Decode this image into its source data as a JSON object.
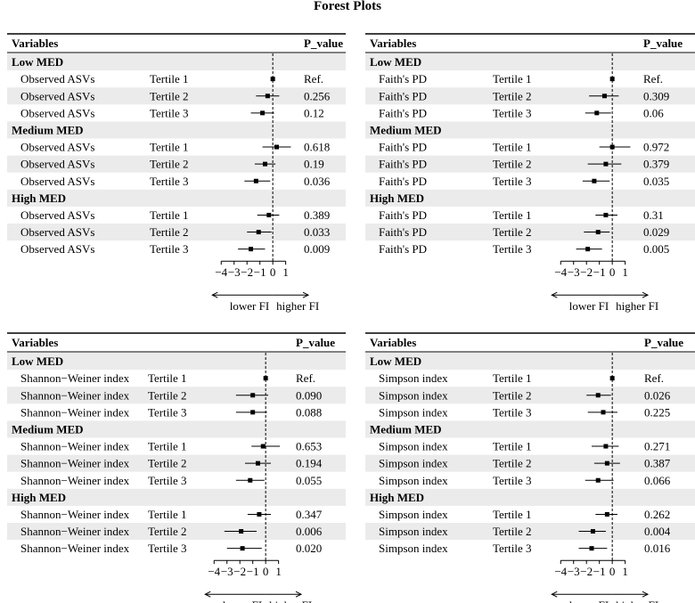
{
  "title": "Forest Plots",
  "axis": {
    "ticks": [
      -4,
      -3,
      -2,
      -1,
      0,
      1
    ],
    "xlim": [
      -5.4,
      2.2
    ],
    "ref_line": 0,
    "lower_label": "lower FI",
    "higher_label": "higher FI"
  },
  "colors": {
    "stripe": "#ebebeb",
    "ink": "#000000"
  },
  "chart_data": [
    {
      "type": "forest",
      "header": {
        "variables": "Variables",
        "pvalue": "P_value"
      },
      "groups": [
        {
          "name": "Low MED",
          "rows": [
            {
              "variable": "Observed ASVs",
              "tertile": "Tertile 1",
              "est": 0.0,
              "lo": 0.0,
              "hi": 0.0,
              "p": "Ref."
            },
            {
              "variable": "Observed ASVs",
              "tertile": "Tertile 2",
              "est": -0.4,
              "lo": -1.3,
              "hi": 0.5,
              "p": "0.256"
            },
            {
              "variable": "Observed ASVs",
              "tertile": "Tertile 3",
              "est": -0.8,
              "lo": -1.7,
              "hi": 0.1,
              "p": "0.12"
            }
          ]
        },
        {
          "name": "Medium MED",
          "rows": [
            {
              "variable": "Observed ASVs",
              "tertile": "Tertile 1",
              "est": 0.3,
              "lo": -0.8,
              "hi": 1.4,
              "p": "0.618"
            },
            {
              "variable": "Observed ASVs",
              "tertile": "Tertile 2",
              "est": -0.6,
              "lo": -1.4,
              "hi": 0.2,
              "p": "0.19"
            },
            {
              "variable": "Observed ASVs",
              "tertile": "Tertile 3",
              "est": -1.3,
              "lo": -2.2,
              "hi": -0.2,
              "p": "0.036"
            }
          ]
        },
        {
          "name": "High MED",
          "rows": [
            {
              "variable": "Observed ASVs",
              "tertile": "Tertile 1",
              "est": -0.3,
              "lo": -1.2,
              "hi": 0.5,
              "p": "0.389"
            },
            {
              "variable": "Observed ASVs",
              "tertile": "Tertile 2",
              "est": -1.1,
              "lo": -2.0,
              "hi": -0.1,
              "p": "0.033"
            },
            {
              "variable": "Observed ASVs",
              "tertile": "Tertile 3",
              "est": -1.7,
              "lo": -2.7,
              "hi": -0.6,
              "p": "0.009"
            }
          ]
        }
      ]
    },
    {
      "type": "forest",
      "header": {
        "variables": "Variables",
        "pvalue": "P_value"
      },
      "groups": [
        {
          "name": "Low MED",
          "rows": [
            {
              "variable": "Faith's PD",
              "tertile": "Tertile 1",
              "est": 0.0,
              "lo": 0.0,
              "hi": 0.0,
              "p": "Ref."
            },
            {
              "variable": "Faith's PD",
              "tertile": "Tertile 2",
              "est": -0.6,
              "lo": -1.8,
              "hi": 0.5,
              "p": "0.309"
            },
            {
              "variable": "Faith's PD",
              "tertile": "Tertile 3",
              "est": -1.2,
              "lo": -2.1,
              "hi": -0.1,
              "p": "0.06"
            }
          ]
        },
        {
          "name": "Medium MED",
          "rows": [
            {
              "variable": "Faith's PD",
              "tertile": "Tertile 1",
              "est": 0.0,
              "lo": -1.0,
              "hi": 1.4,
              "p": "0.972"
            },
            {
              "variable": "Faith's PD",
              "tertile": "Tertile 2",
              "est": -0.5,
              "lo": -1.9,
              "hi": 0.7,
              "p": "0.379"
            },
            {
              "variable": "Faith's PD",
              "tertile": "Tertile 3",
              "est": -1.4,
              "lo": -2.3,
              "hi": -0.2,
              "p": "0.035"
            }
          ]
        },
        {
          "name": "High MED",
          "rows": [
            {
              "variable": "Faith's PD",
              "tertile": "Tertile 1",
              "est": -0.5,
              "lo": -1.3,
              "hi": 0.4,
              "p": "0.31"
            },
            {
              "variable": "Faith's PD",
              "tertile": "Tertile 2",
              "est": -1.1,
              "lo": -2.2,
              "hi": -0.2,
              "p": "0.029"
            },
            {
              "variable": "Faith's PD",
              "tertile": "Tertile 3",
              "est": -1.9,
              "lo": -2.8,
              "hi": -0.8,
              "p": "0.005"
            }
          ]
        }
      ]
    },
    {
      "type": "forest",
      "header": {
        "variables": "Variables",
        "pvalue": "P_value"
      },
      "groups": [
        {
          "name": "Low MED",
          "rows": [
            {
              "variable": "Shannon−Weiner index",
              "tertile": "Tertile 1",
              "est": 0.0,
              "lo": 0.0,
              "hi": 0.0,
              "p": "Ref."
            },
            {
              "variable": "Shannon−Weiner index",
              "tertile": "Tertile 2",
              "est": -1.0,
              "lo": -2.3,
              "hi": 0.2,
              "p": "0.090"
            },
            {
              "variable": "Shannon−Weiner index",
              "tertile": "Tertile 3",
              "est": -1.0,
              "lo": -2.3,
              "hi": 0.1,
              "p": "0.088"
            }
          ]
        },
        {
          "name": "Medium MED",
          "rows": [
            {
              "variable": "Shannon−Weiner index",
              "tertile": "Tertile 1",
              "est": -0.2,
              "lo": -1.1,
              "hi": 1.1,
              "p": "0.653"
            },
            {
              "variable": "Shannon−Weiner index",
              "tertile": "Tertile 2",
              "est": -0.6,
              "lo": -1.6,
              "hi": 0.4,
              "p": "0.194"
            },
            {
              "variable": "Shannon−Weiner index",
              "tertile": "Tertile 3",
              "est": -1.2,
              "lo": -2.3,
              "hi": -0.1,
              "p": "0.055"
            }
          ]
        },
        {
          "name": "High MED",
          "rows": [
            {
              "variable": "Shannon−Weiner index",
              "tertile": "Tertile 1",
              "est": -0.5,
              "lo": -1.4,
              "hi": 0.4,
              "p": "0.347"
            },
            {
              "variable": "Shannon−Weiner index",
              "tertile": "Tertile 2",
              "est": -1.9,
              "lo": -3.2,
              "hi": -0.7,
              "p": "0.006"
            },
            {
              "variable": "Shannon−Weiner index",
              "tertile": "Tertile 3",
              "est": -1.8,
              "lo": -3.0,
              "hi": -0.3,
              "p": "0.020"
            }
          ]
        }
      ]
    },
    {
      "type": "forest",
      "header": {
        "variables": "Variables",
        "pvalue": "P_value"
      },
      "groups": [
        {
          "name": "Low MED",
          "rows": [
            {
              "variable": "Simpson index",
              "tertile": "Tertile 1",
              "est": 0.0,
              "lo": 0.0,
              "hi": 0.0,
              "p": "Ref."
            },
            {
              "variable": "Simpson index",
              "tertile": "Tertile 2",
              "est": -1.1,
              "lo": -2.0,
              "hi": -0.1,
              "p": "0.026"
            },
            {
              "variable": "Simpson index",
              "tertile": "Tertile 3",
              "est": -0.7,
              "lo": -1.9,
              "hi": 0.4,
              "p": "0.225"
            }
          ]
        },
        {
          "name": "Medium MED",
          "rows": [
            {
              "variable": "Simpson index",
              "tertile": "Tertile 1",
              "est": -0.5,
              "lo": -1.6,
              "hi": 0.5,
              "p": "0.271"
            },
            {
              "variable": "Simpson index",
              "tertile": "Tertile 2",
              "est": -0.4,
              "lo": -1.4,
              "hi": 0.6,
              "p": "0.387"
            },
            {
              "variable": "Simpson index",
              "tertile": "Tertile 3",
              "est": -1.1,
              "lo": -2.1,
              "hi": 0.1,
              "p": "0.066"
            }
          ]
        },
        {
          "name": "High MED",
          "rows": [
            {
              "variable": "Simpson index",
              "tertile": "Tertile 1",
              "est": -0.4,
              "lo": -1.3,
              "hi": 0.4,
              "p": "0.262"
            },
            {
              "variable": "Simpson index",
              "tertile": "Tertile 2",
              "est": -1.5,
              "lo": -2.6,
              "hi": -0.5,
              "p": "0.004"
            },
            {
              "variable": "Simpson index",
              "tertile": "Tertile 3",
              "est": -1.6,
              "lo": -2.6,
              "hi": -0.4,
              "p": "0.016"
            }
          ]
        }
      ]
    }
  ]
}
